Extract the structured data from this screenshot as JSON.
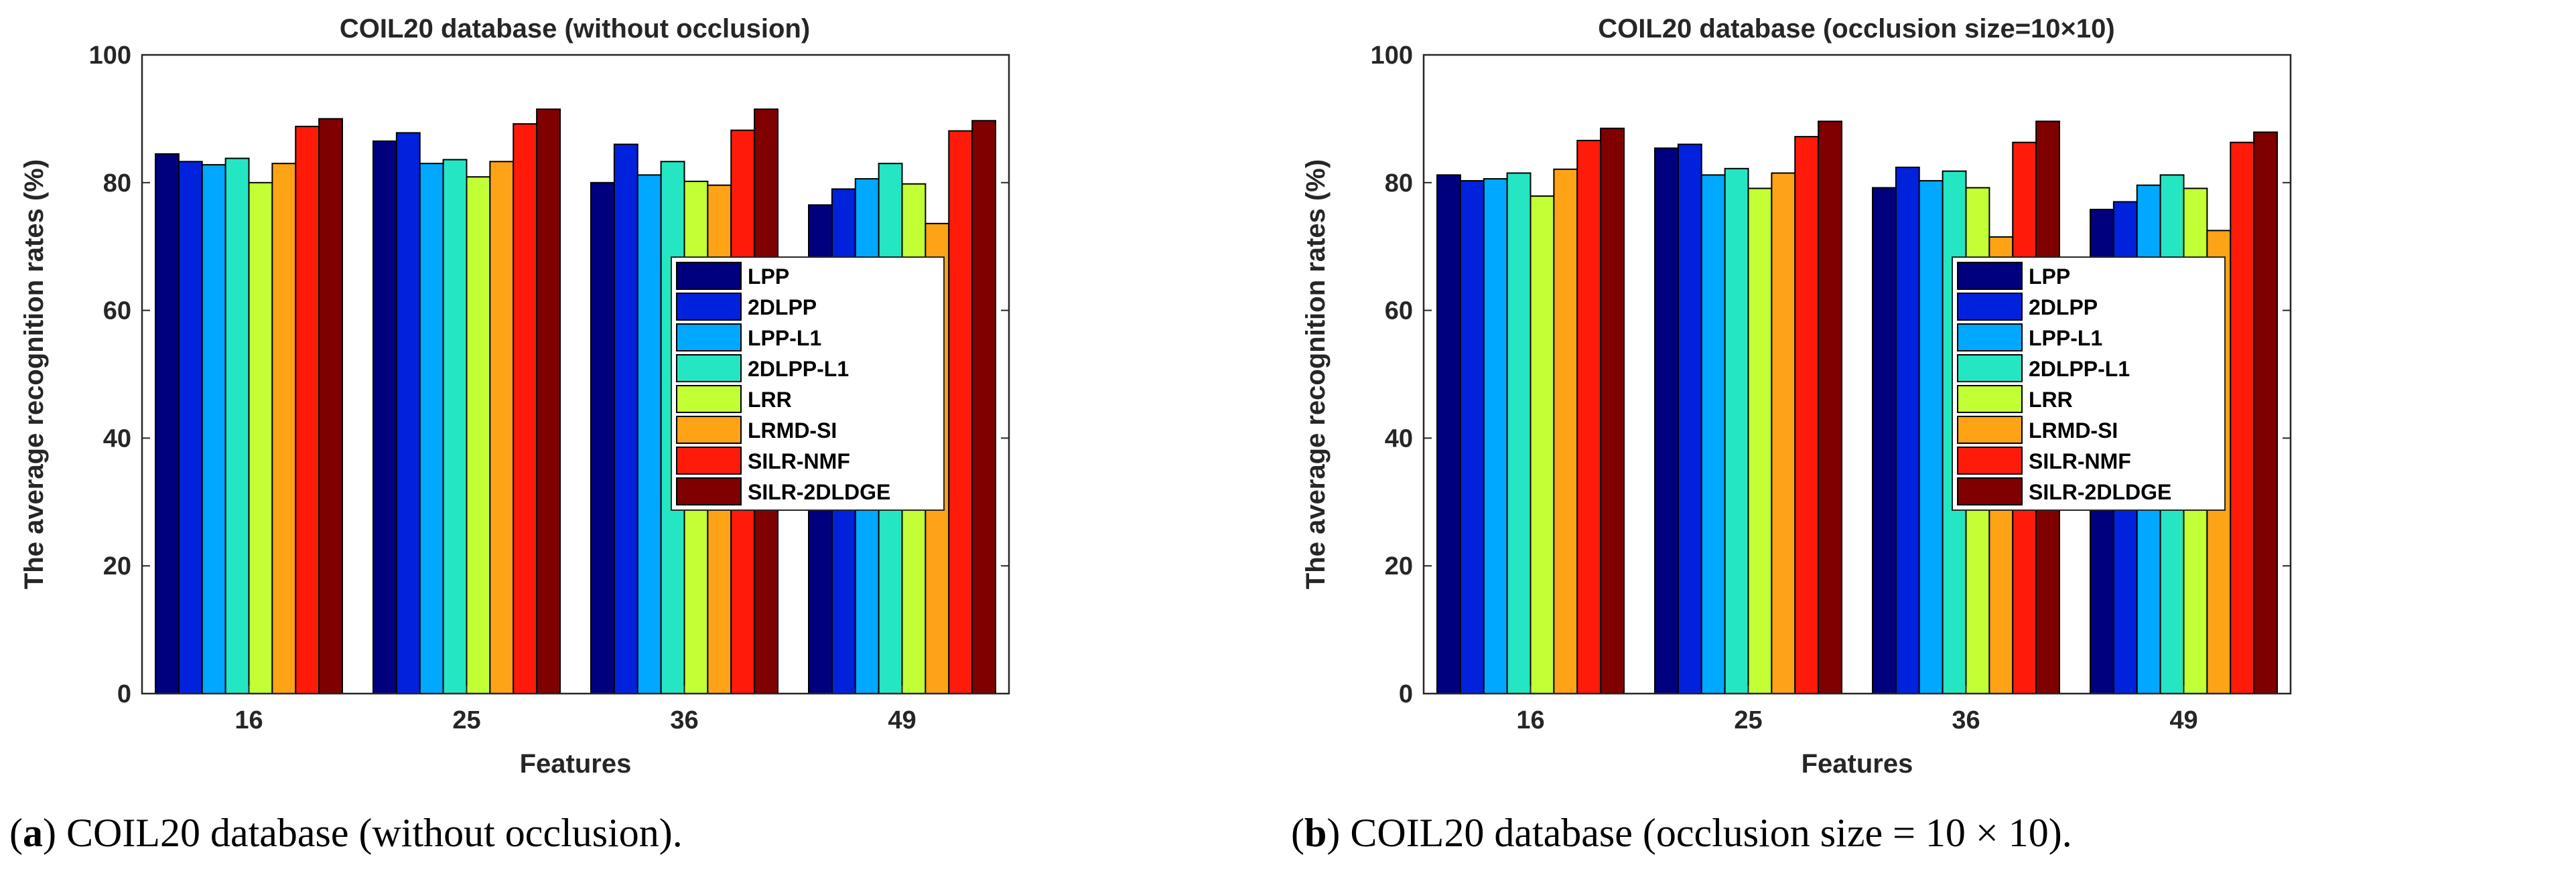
{
  "chart_data": [
    {
      "type": "bar",
      "title": "COIL20 database (without occlusion)",
      "xlabel": "Features",
      "ylabel": "The average recognition rates (%)",
      "ylim": [
        0,
        100
      ],
      "yticks": [
        0,
        20,
        40,
        60,
        80,
        100
      ],
      "categories": [
        "16",
        "25",
        "36",
        "49"
      ],
      "legend_position": "center-right",
      "series": [
        {
          "name": "LPP",
          "color": "#00007f",
          "values": [
            84.5,
            86.5,
            80.0,
            76.5
          ]
        },
        {
          "name": "2DLPP",
          "color": "#0022dd",
          "values": [
            83.3,
            87.8,
            86.0,
            79.0
          ]
        },
        {
          "name": "LPP-L1",
          "color": "#00a8ff",
          "values": [
            82.8,
            83.0,
            81.2,
            80.6
          ]
        },
        {
          "name": "2DLPP-L1",
          "color": "#25e6c2",
          "values": [
            83.8,
            83.6,
            83.3,
            83.0
          ]
        },
        {
          "name": "LRR",
          "color": "#c2ff35",
          "values": [
            80.0,
            80.9,
            80.2,
            79.8
          ]
        },
        {
          "name": "LRMD-SI",
          "color": "#ffa316",
          "values": [
            83.0,
            83.3,
            79.6,
            73.6
          ]
        },
        {
          "name": "SILR-NMF",
          "color": "#ff1a0a",
          "values": [
            88.8,
            89.2,
            88.2,
            88.1
          ]
        },
        {
          "name": "SILR-2DLDGE",
          "color": "#800000",
          "values": [
            90.0,
            91.5,
            91.5,
            89.7
          ]
        }
      ],
      "caption": {
        "letter": "a",
        "text": ") COIL20 database (without occlusion)."
      }
    },
    {
      "type": "bar",
      "title": "COIL20 database (occlusion size=10×10)",
      "xlabel": "Features",
      "ylabel": "The average recognition rates (%)",
      "ylim": [
        0,
        100
      ],
      "yticks": [
        0,
        20,
        40,
        60,
        80,
        100
      ],
      "categories": [
        "16",
        "25",
        "36",
        "49"
      ],
      "legend_position": "center-right",
      "series": [
        {
          "name": "LPP",
          "color": "#00007f",
          "values": [
            81.2,
            85.4,
            79.2,
            75.8
          ]
        },
        {
          "name": "2DLPP",
          "color": "#0022dd",
          "values": [
            80.3,
            86.0,
            82.4,
            77.0
          ]
        },
        {
          "name": "LPP-L1",
          "color": "#00a8ff",
          "values": [
            80.6,
            81.2,
            80.3,
            79.6
          ]
        },
        {
          "name": "2DLPP-L1",
          "color": "#25e6c2",
          "values": [
            81.5,
            82.2,
            81.8,
            81.2
          ]
        },
        {
          "name": "LRR",
          "color": "#c2ff35",
          "values": [
            77.9,
            79.1,
            79.2,
            79.1
          ]
        },
        {
          "name": "LRMD-SI",
          "color": "#ffa316",
          "values": [
            82.1,
            81.5,
            71.5,
            72.5
          ]
        },
        {
          "name": "SILR-NMF",
          "color": "#ff1a0a",
          "values": [
            86.6,
            87.2,
            86.3,
            86.3
          ]
        },
        {
          "name": "SILR-2DLDGE",
          "color": "#800000",
          "values": [
            88.5,
            89.6,
            89.6,
            87.9
          ]
        }
      ],
      "caption": {
        "letter": "b",
        "text": ") COIL20 database (occlusion size = 10 × 10)."
      }
    }
  ]
}
